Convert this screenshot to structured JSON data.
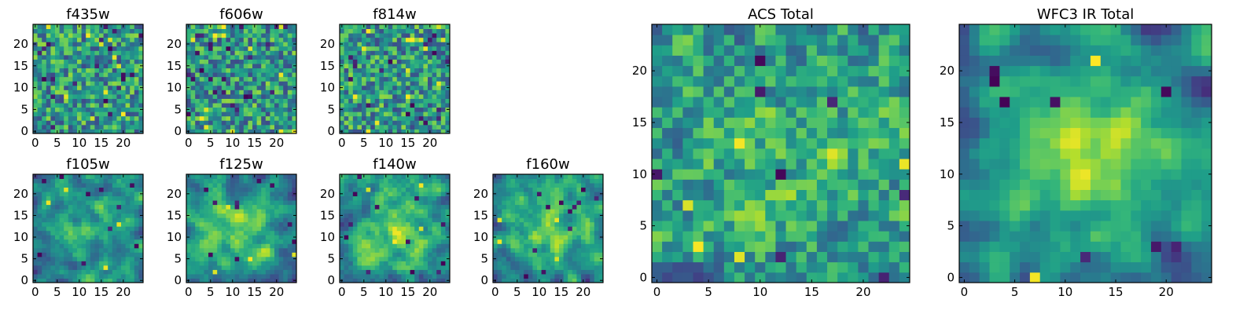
{
  "chart_data": [
    {
      "type": "heatmap",
      "title": "f435w",
      "xticks": [
        "0",
        "5",
        "10",
        "15",
        "20"
      ],
      "yticks": [
        "0",
        "5",
        "10",
        "15",
        "20"
      ],
      "xlim": [
        0,
        25
      ],
      "ylim": [
        0,
        25
      ],
      "grid": false,
      "colormap": "viridis",
      "seed": 11,
      "smooth": 0.0,
      "peak": 0.0,
      "dark_count": 20,
      "light_count": 10
    },
    {
      "type": "heatmap",
      "title": "f606w",
      "xticks": [
        "0",
        "5",
        "10",
        "15",
        "20"
      ],
      "yticks": [
        "0",
        "5",
        "10",
        "15",
        "20"
      ],
      "xlim": [
        0,
        25
      ],
      "ylim": [
        0,
        25
      ],
      "grid": false,
      "colormap": "viridis",
      "seed": 23,
      "smooth": 0.0,
      "peak": 0.0,
      "dark_count": 24,
      "light_count": 14
    },
    {
      "type": "heatmap",
      "title": "f814w",
      "xticks": [
        "0",
        "5",
        "10",
        "15",
        "20"
      ],
      "yticks": [
        "0",
        "5",
        "10",
        "15",
        "20"
      ],
      "xlim": [
        0,
        25
      ],
      "ylim": [
        0,
        25
      ],
      "grid": false,
      "colormap": "viridis",
      "seed": 37,
      "smooth": 0.0,
      "peak": 0.0,
      "dark_count": 18,
      "light_count": 14
    },
    {
      "type": "heatmap",
      "title": "f105w",
      "xticks": [
        "0",
        "5",
        "10",
        "15",
        "20"
      ],
      "yticks": [
        "0",
        "5",
        "10",
        "15",
        "20"
      ],
      "xlim": [
        0,
        25
      ],
      "ylim": [
        0,
        25
      ],
      "grid": false,
      "colormap": "viridis",
      "seed": 41,
      "smooth": 0.7,
      "peak": 0.25,
      "dark_count": 10,
      "light_count": 4
    },
    {
      "type": "heatmap",
      "title": "f125w",
      "xticks": [
        "0",
        "5",
        "10",
        "15",
        "20"
      ],
      "yticks": [
        "0",
        "5",
        "10",
        "15",
        "20"
      ],
      "xlim": [
        0,
        25
      ],
      "ylim": [
        0,
        25
      ],
      "grid": false,
      "colormap": "viridis",
      "seed": 53,
      "smooth": 0.7,
      "peak": 0.3,
      "dark_count": 10,
      "light_count": 4
    },
    {
      "type": "heatmap",
      "title": "f140w",
      "xticks": [
        "0",
        "5",
        "10",
        "15",
        "20"
      ],
      "yticks": [
        "0",
        "5",
        "10",
        "15",
        "20"
      ],
      "xlim": [
        0,
        25
      ],
      "ylim": [
        0,
        25
      ],
      "grid": false,
      "colormap": "viridis",
      "seed": 67,
      "smooth": 0.7,
      "peak": 0.3,
      "dark_count": 12,
      "light_count": 4
    },
    {
      "type": "heatmap",
      "title": "f160w",
      "xticks": [
        "0",
        "5",
        "10",
        "15",
        "20"
      ],
      "yticks": [
        "0",
        "5",
        "10",
        "15",
        "20"
      ],
      "xlim": [
        0,
        25
      ],
      "ylim": [
        0,
        25
      ],
      "grid": false,
      "colormap": "viridis",
      "seed": 79,
      "smooth": 0.7,
      "peak": 0.35,
      "dark_count": 12,
      "light_count": 4
    },
    {
      "type": "heatmap",
      "title": "ACS Total",
      "xticks": [
        "0",
        "5",
        "10",
        "15",
        "20"
      ],
      "yticks": [
        "0",
        "5",
        "10",
        "15",
        "20"
      ],
      "xlim": [
        0,
        25
      ],
      "ylim": [
        0,
        25
      ],
      "grid": false,
      "colormap": "viridis",
      "seed": 97,
      "smooth": 0.3,
      "peak": 0.1,
      "dark_count": 8,
      "light_count": 6
    },
    {
      "type": "heatmap",
      "title": "WFC3 IR Total",
      "xticks": [
        "0",
        "5",
        "10",
        "15",
        "20"
      ],
      "yticks": [
        "0",
        "5",
        "10",
        "15",
        "20"
      ],
      "xlim": [
        0,
        25
      ],
      "ylim": [
        0,
        25
      ],
      "grid": false,
      "colormap": "viridis",
      "seed": 113,
      "smooth": 0.75,
      "peak": 0.45,
      "dark_count": 8,
      "light_count": 2
    }
  ]
}
